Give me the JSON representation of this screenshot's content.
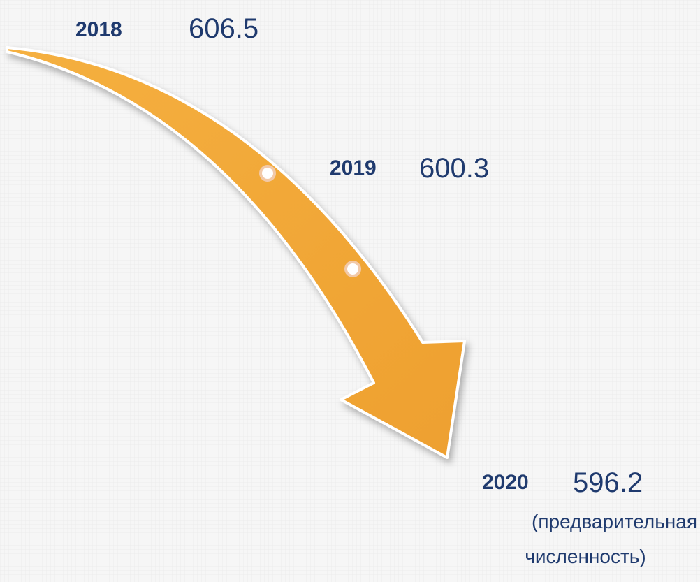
{
  "items": [
    {
      "year": "2018",
      "value": "606.5"
    },
    {
      "year": "2019",
      "value": "600.3"
    },
    {
      "year": "2020",
      "value": "596.2",
      "note": [
        "(предварительная",
        "численность)"
      ]
    }
  ]
}
